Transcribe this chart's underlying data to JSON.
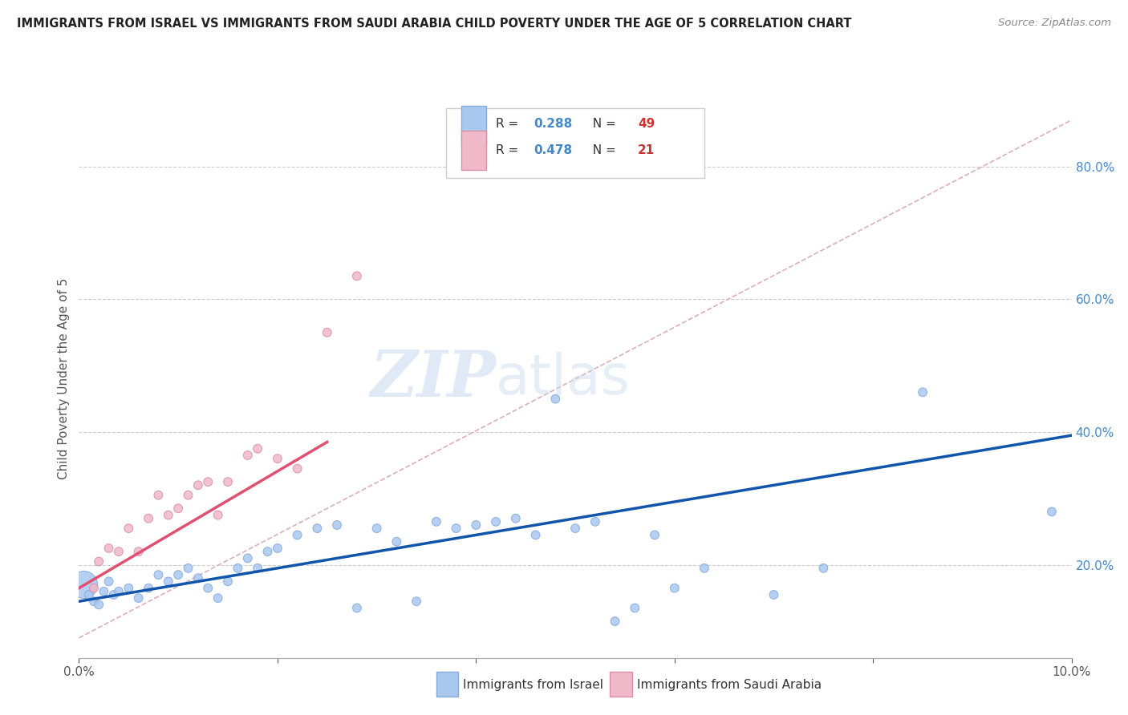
{
  "title": "IMMIGRANTS FROM ISRAEL VS IMMIGRANTS FROM SAUDI ARABIA CHILD POVERTY UNDER THE AGE OF 5 CORRELATION CHART",
  "source": "Source: ZipAtlas.com",
  "ylabel": "Child Poverty Under the Age of 5",
  "y_tick_labels": [
    "20.0%",
    "40.0%",
    "60.0%",
    "80.0%"
  ],
  "y_tick_values": [
    0.2,
    0.4,
    0.6,
    0.8
  ],
  "x_range": [
    0.0,
    0.1
  ],
  "y_range": [
    0.06,
    0.9
  ],
  "legend1_color": "#a8c8f0",
  "legend2_color": "#f0b8c8",
  "line1_color": "#1155aa",
  "line2_color": "#e05070",
  "diag_color": "#d8b0b8",
  "watermark_zip": "ZIP",
  "watermark_atlas": "atlas",
  "israel_scatter": [
    [
      0.0005,
      0.17
    ],
    [
      0.001,
      0.155
    ],
    [
      0.0015,
      0.145
    ],
    [
      0.002,
      0.14
    ],
    [
      0.0025,
      0.16
    ],
    [
      0.003,
      0.175
    ],
    [
      0.0035,
      0.155
    ],
    [
      0.004,
      0.16
    ],
    [
      0.005,
      0.165
    ],
    [
      0.006,
      0.15
    ],
    [
      0.007,
      0.165
    ],
    [
      0.008,
      0.185
    ],
    [
      0.009,
      0.175
    ],
    [
      0.01,
      0.185
    ],
    [
      0.011,
      0.195
    ],
    [
      0.012,
      0.18
    ],
    [
      0.013,
      0.165
    ],
    [
      0.014,
      0.15
    ],
    [
      0.015,
      0.175
    ],
    [
      0.016,
      0.195
    ],
    [
      0.017,
      0.21
    ],
    [
      0.018,
      0.195
    ],
    [
      0.019,
      0.22
    ],
    [
      0.02,
      0.225
    ],
    [
      0.022,
      0.245
    ],
    [
      0.024,
      0.255
    ],
    [
      0.026,
      0.26
    ],
    [
      0.028,
      0.135
    ],
    [
      0.03,
      0.255
    ],
    [
      0.032,
      0.235
    ],
    [
      0.034,
      0.145
    ],
    [
      0.036,
      0.265
    ],
    [
      0.038,
      0.255
    ],
    [
      0.04,
      0.26
    ],
    [
      0.042,
      0.265
    ],
    [
      0.044,
      0.27
    ],
    [
      0.046,
      0.245
    ],
    [
      0.048,
      0.45
    ],
    [
      0.05,
      0.255
    ],
    [
      0.052,
      0.265
    ],
    [
      0.054,
      0.115
    ],
    [
      0.056,
      0.135
    ],
    [
      0.058,
      0.245
    ],
    [
      0.06,
      0.165
    ],
    [
      0.063,
      0.195
    ],
    [
      0.07,
      0.155
    ],
    [
      0.075,
      0.195
    ],
    [
      0.085,
      0.46
    ],
    [
      0.098,
      0.28
    ]
  ],
  "israel_sizes": [
    600,
    60,
    60,
    60,
    60,
    60,
    60,
    60,
    60,
    60,
    60,
    60,
    60,
    60,
    60,
    60,
    60,
    60,
    60,
    60,
    60,
    60,
    60,
    60,
    60,
    60,
    60,
    60,
    60,
    60,
    60,
    60,
    60,
    60,
    60,
    60,
    60,
    60,
    60,
    60,
    60,
    60,
    60,
    60,
    60,
    60,
    60,
    60,
    60
  ],
  "saudi_scatter": [
    [
      0.0015,
      0.165
    ],
    [
      0.002,
      0.205
    ],
    [
      0.003,
      0.225
    ],
    [
      0.004,
      0.22
    ],
    [
      0.005,
      0.255
    ],
    [
      0.006,
      0.22
    ],
    [
      0.007,
      0.27
    ],
    [
      0.008,
      0.305
    ],
    [
      0.009,
      0.275
    ],
    [
      0.01,
      0.285
    ],
    [
      0.011,
      0.305
    ],
    [
      0.012,
      0.32
    ],
    [
      0.013,
      0.325
    ],
    [
      0.014,
      0.275
    ],
    [
      0.015,
      0.325
    ],
    [
      0.017,
      0.365
    ],
    [
      0.018,
      0.375
    ],
    [
      0.02,
      0.36
    ],
    [
      0.022,
      0.345
    ],
    [
      0.025,
      0.55
    ],
    [
      0.028,
      0.635
    ]
  ],
  "saudi_sizes": [
    60,
    60,
    60,
    60,
    60,
    60,
    60,
    60,
    60,
    60,
    60,
    60,
    60,
    60,
    60,
    60,
    60,
    60,
    60,
    60,
    60
  ],
  "israel_line_x": [
    0.0,
    0.1
  ],
  "israel_line_y": [
    0.145,
    0.395
  ],
  "saudi_line_x": [
    0.0,
    0.025
  ],
  "saudi_line_y": [
    0.165,
    0.385
  ],
  "diag_line_x": [
    0.0,
    0.1
  ],
  "diag_line_y": [
    0.09,
    0.87
  ]
}
